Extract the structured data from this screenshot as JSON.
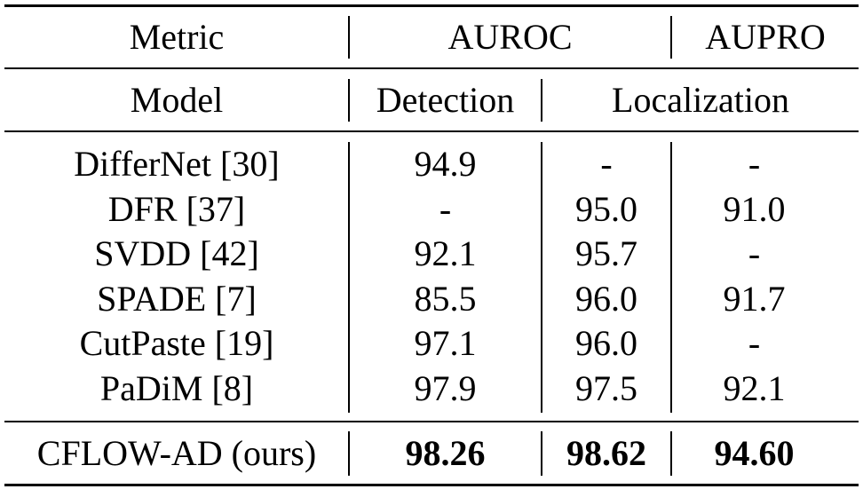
{
  "header": {
    "metric_label": "Metric",
    "auroc_label": "AUROC",
    "aupro_label": "AUPRO",
    "model_label": "Model",
    "detection_label": "Detection",
    "localization_label": "Localization"
  },
  "rows": [
    {
      "model": "DifferNet [30]",
      "detection": "94.9",
      "localization": "-",
      "aupro": "-"
    },
    {
      "model": "DFR [37]",
      "detection": "-",
      "localization": "95.0",
      "aupro": "91.0"
    },
    {
      "model": "SVDD [42]",
      "detection": "92.1",
      "localization": "95.7",
      "aupro": "-"
    },
    {
      "model": "SPADE [7]",
      "detection": "85.5",
      "localization": "96.0",
      "aupro": "91.7"
    },
    {
      "model": "CutPaste [19]",
      "detection": "97.1",
      "localization": "96.0",
      "aupro": "-"
    },
    {
      "model": "PaDiM [8]",
      "detection": "97.9",
      "localization": "97.5",
      "aupro": "92.1"
    }
  ],
  "ours": {
    "model": "CFLOW-AD (ours)",
    "detection": "98.26",
    "localization": "98.62",
    "aupro": "94.60"
  }
}
